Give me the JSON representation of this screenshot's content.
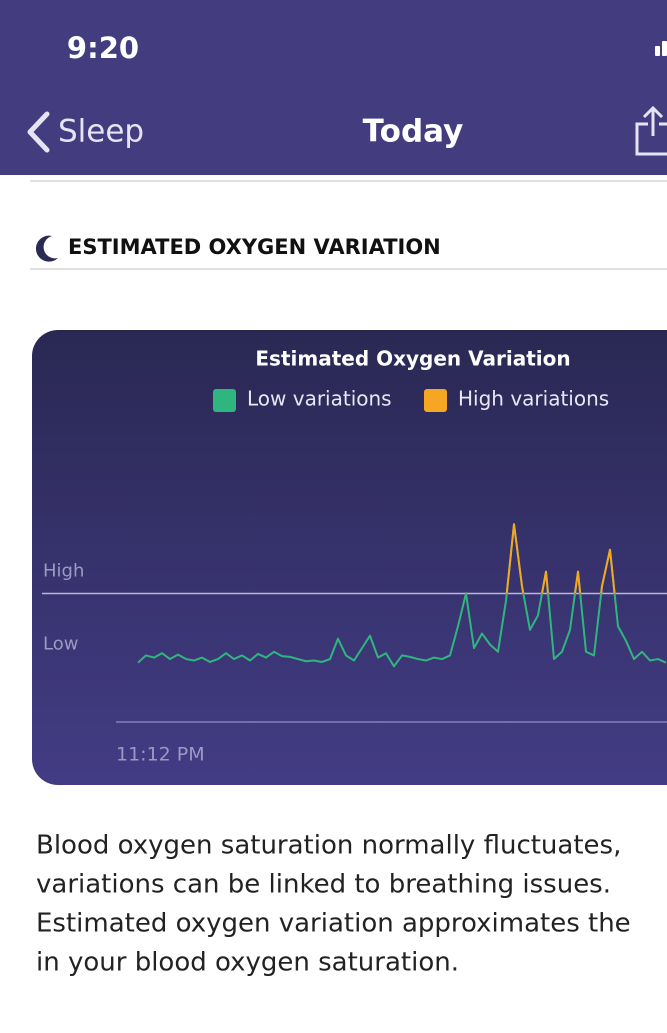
{
  "status_bar": {
    "time": "9:20"
  },
  "nav": {
    "back": "Sleep",
    "title": "Today"
  },
  "section": {
    "title": "ESTIMATED OXYGEN VARIATION"
  },
  "chart_data": {
    "type": "line",
    "title": "Estimated Oxygen Variation",
    "legend": [
      {
        "name": "Low variations",
        "color": "#2fb67f"
      },
      {
        "name": "High variations",
        "color": "#f5a623"
      }
    ],
    "categories": [
      "11:12 PM",
      null,
      null,
      null,
      null,
      null,
      null,
      null,
      null,
      null,
      null,
      null,
      null,
      null,
      null,
      null,
      null,
      null,
      null,
      null,
      null,
      null,
      null,
      null,
      null,
      null,
      null,
      null,
      null,
      null,
      null,
      null,
      null,
      null,
      null,
      null,
      null,
      null,
      null,
      null,
      null,
      null,
      null,
      null,
      null,
      null,
      null,
      null,
      null,
      null,
      null,
      null,
      null,
      null,
      null,
      null,
      null,
      null,
      null,
      null,
      null,
      null,
      null,
      null,
      null,
      null,
      null
    ],
    "values": [
      1.05,
      1.15,
      1.12,
      1.18,
      1.1,
      1.16,
      1.1,
      1.08,
      1.12,
      1.06,
      1.1,
      1.18,
      1.1,
      1.15,
      1.08,
      1.17,
      1.12,
      1.2,
      1.14,
      1.13,
      1.1,
      1.07,
      1.08,
      1.06,
      1.1,
      1.38,
      1.15,
      1.08,
      1.25,
      1.42,
      1.12,
      1.18,
      1.0,
      1.15,
      1.13,
      1.1,
      1.08,
      1.12,
      1.1,
      1.15,
      1.55,
      2.0,
      1.25,
      1.45,
      1.3,
      1.2,
      1.9,
      2.95,
      2.1,
      1.5,
      1.7,
      2.3,
      1.1,
      1.2,
      1.5,
      2.3,
      1.2,
      1.15,
      2.1,
      2.6,
      1.55,
      1.35,
      1.1,
      1.2,
      1.08,
      1.1,
      1.05
    ],
    "ylim": [
      0.25,
      3.2
    ],
    "yticks": [
      {
        "value": 1,
        "label": "Low"
      },
      {
        "value": 2,
        "label": "High"
      }
    ]
  },
  "description": {
    "lines": [
      "Blood oxygen saturation normally fluctuates,",
      "variations can be  linked to breathing issues.",
      "Estimated oxygen variation approximates the",
      "in your blood oxygen saturation."
    ]
  }
}
